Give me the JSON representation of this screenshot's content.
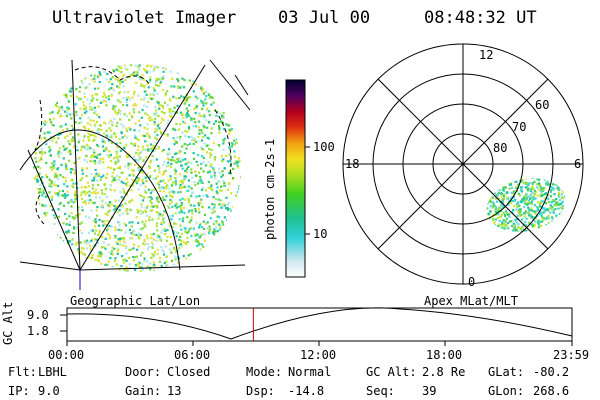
{
  "header": {
    "instrument": "Ultraviolet Imager",
    "date": "03 Jul 00",
    "time": "08:48:32 UT"
  },
  "colorbar": {
    "unit_label": "photon cm-2s-1",
    "tick_labels": [
      "100",
      "10"
    ]
  },
  "panels": {
    "left_label": "Geographic Lat/Lon",
    "right_label": "Apex MLat/MLT"
  },
  "polar_plot": {
    "mlt_labels": [
      "12",
      "6",
      "0",
      "18"
    ],
    "mlat_labels": [
      "60",
      "70",
      "80"
    ]
  },
  "altitude_plot": {
    "ylabel": "GC Alt",
    "ytick_labels": [
      "9.0",
      "1.8"
    ],
    "xtick_labels": [
      "00:00",
      "06:00",
      "12:00",
      "18:00",
      "23:59"
    ],
    "current_time_fraction": 0.369
  },
  "footer": {
    "row1": [
      {
        "label": "Flt:",
        "value": "LBHL"
      },
      {
        "label": "Door:",
        "value": "Closed"
      },
      {
        "label": "Mode:",
        "value": "Normal"
      },
      {
        "label": "GC Alt:",
        "value": "2.8 Re"
      },
      {
        "label": "GLat:",
        "value": "-80.2"
      }
    ],
    "row2": [
      {
        "label": "IP:",
        "value": "9.0"
      },
      {
        "label": "Gain:",
        "value": "13"
      },
      {
        "label": "Dsp:",
        "value": "-14.8"
      },
      {
        "label": "Seq:",
        "value": "39"
      },
      {
        "label": "GLon:",
        "value": "268.6"
      }
    ]
  },
  "colors": {
    "marker": "#cc0000",
    "nadir_tick": "#0000cc"
  }
}
